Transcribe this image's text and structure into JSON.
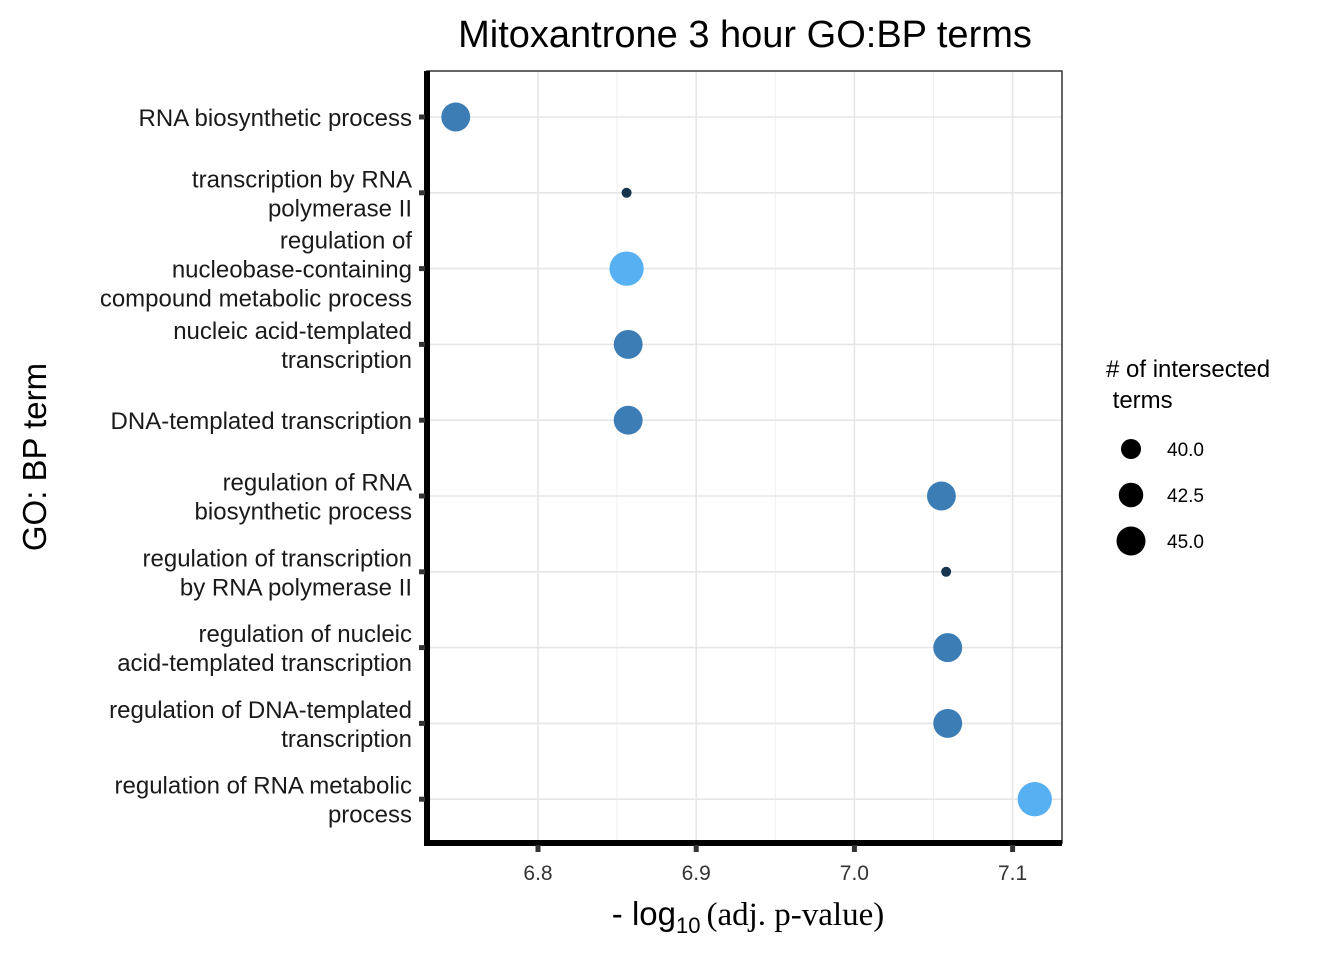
{
  "chart_data": {
    "type": "scatter",
    "title": "Mitoxantrone 3 hour GO:BP terms",
    "xlabel": {
      "prefix": "- log",
      "subscript": "10",
      "suffix": "(adj. p-value)"
    },
    "ylabel": "GO: BP term",
    "xlim": [
      6.73,
      7.13
    ],
    "xticks": [
      "6.8",
      "6.9",
      "7.0",
      "7.1"
    ],
    "xtick_values": [
      6.8,
      6.9,
      7.0,
      7.1
    ],
    "grid": true,
    "legend": {
      "title_lines": [
        "# of intersected",
        " terms"
      ],
      "placement": "right",
      "entries": [
        {
          "label": "40.0",
          "size": 40.0
        },
        {
          "label": "42.5",
          "size": 42.5
        },
        {
          "label": "45.0",
          "size": 45.0
        }
      ]
    },
    "points": [
      {
        "term_lines": [
          "RNA biosynthetic process"
        ],
        "x": 6.748,
        "count": 44,
        "color": "#3c7db6"
      },
      {
        "term_lines": [
          "transcription by RNA",
          "polymerase II"
        ],
        "x": 6.856,
        "count": 37,
        "color": "#17344f"
      },
      {
        "term_lines": [
          "regulation of",
          "nucleobase-containing",
          "compound metabolic process"
        ],
        "x": 6.856,
        "count": 46,
        "color": "#56b0f2"
      },
      {
        "term_lines": [
          "nucleic acid-templated",
          "transcription"
        ],
        "x": 6.857,
        "count": 44,
        "color": "#3c7db6"
      },
      {
        "term_lines": [
          "DNA-templated transcription"
        ],
        "x": 6.857,
        "count": 44,
        "color": "#3c7db6"
      },
      {
        "term_lines": [
          "regulation of RNA",
          "biosynthetic process"
        ],
        "x": 7.055,
        "count": 44,
        "color": "#3c7db6"
      },
      {
        "term_lines": [
          "regulation of transcription",
          "by RNA polymerase II"
        ],
        "x": 7.058,
        "count": 37,
        "color": "#17344f"
      },
      {
        "term_lines": [
          "regulation of nucleic",
          "acid-templated transcription"
        ],
        "x": 7.059,
        "count": 44,
        "color": "#3c7db6"
      },
      {
        "term_lines": [
          "regulation of DNA-templated",
          "transcription"
        ],
        "x": 7.059,
        "count": 44,
        "color": "#3c7db6"
      },
      {
        "term_lines": [
          "regulation of RNA metabolic",
          "process"
        ],
        "x": 7.114,
        "count": 46,
        "color": "#56b0f2"
      }
    ]
  }
}
